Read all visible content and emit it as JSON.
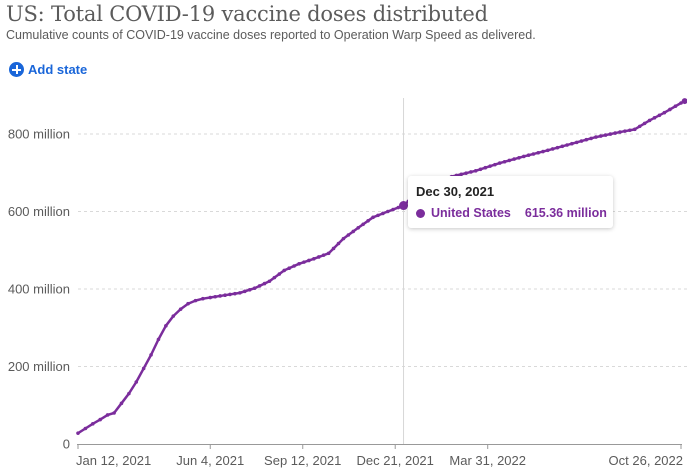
{
  "header": {
    "title": "US: Total COVID-19 vaccine doses distributed",
    "subtitle": "Cumulative counts of COVID-19 vaccine doses reported to Operation Warp Speed as delivered."
  },
  "controls": {
    "add_state_label": "Add state",
    "add_state_icon": "plus-circle-icon"
  },
  "colors": {
    "series": "#7b2d9c",
    "link": "#1a66d9",
    "text": "#5b5b5b",
    "grid": "#d9d9d9"
  },
  "tooltip": {
    "date": "Dec 30, 2021",
    "entity": "United States",
    "value": "615.36 million"
  },
  "chart_data": {
    "type": "line",
    "title": "US: Total COVID-19 vaccine doses distributed",
    "subtitle": "Cumulative counts of COVID-19 vaccine doses reported to Operation Warp Speed as delivered.",
    "xlabel": "",
    "ylabel": "",
    "x_type": "date",
    "xlim": [
      "2021-01-12",
      "2022-10-26"
    ],
    "ylim": [
      0,
      900000000
    ],
    "grid": "horizontal dashed",
    "legend": "none",
    "yticks": [
      {
        "value": 0,
        "label": "0"
      },
      {
        "value": 200000000,
        "label": "200 million"
      },
      {
        "value": 400000000,
        "label": "400 million"
      },
      {
        "value": 600000000,
        "label": "600 million"
      },
      {
        "value": 800000000,
        "label": "800 million"
      }
    ],
    "xticks": [
      {
        "value": "2021-01-12",
        "label": "Jan 12, 2021"
      },
      {
        "value": "2021-06-04",
        "label": "Jun 4, 2021"
      },
      {
        "value": "2021-09-12",
        "label": "Sep 12, 2021"
      },
      {
        "value": "2021-12-21",
        "label": "Dec 21, 2021"
      },
      {
        "value": "2022-03-31",
        "label": "Mar 31, 2022"
      },
      {
        "value": "2022-10-26",
        "label": "Oct 26, 2022"
      }
    ],
    "series": [
      {
        "name": "United States",
        "x": [
          "2021-01-12",
          "2021-01-20",
          "2021-01-28",
          "2021-02-05",
          "2021-02-13",
          "2021-02-20",
          "2021-02-28",
          "2021-03-08",
          "2021-03-16",
          "2021-03-24",
          "2021-04-01",
          "2021-04-09",
          "2021-04-17",
          "2021-04-25",
          "2021-05-03",
          "2021-05-11",
          "2021-05-19",
          "2021-05-27",
          "2021-06-04",
          "2021-06-20",
          "2021-07-06",
          "2021-07-22",
          "2021-08-07",
          "2021-08-23",
          "2021-09-08",
          "2021-09-24",
          "2021-10-10",
          "2021-10-26",
          "2021-11-11",
          "2021-11-27",
          "2021-12-13",
          "2021-12-30",
          "2022-01-25",
          "2022-02-20",
          "2022-03-18",
          "2022-04-13",
          "2022-05-09",
          "2022-06-04",
          "2022-06-30",
          "2022-07-26",
          "2022-08-21",
          "2022-09-06",
          "2022-09-22",
          "2022-10-08",
          "2022-10-26",
          "2022-10-30"
        ],
        "values": [
          28000000,
          40000000,
          52000000,
          63000000,
          75000000,
          80000000,
          105000000,
          130000000,
          160000000,
          195000000,
          230000000,
          270000000,
          305000000,
          330000000,
          348000000,
          362000000,
          370000000,
          375000000,
          378000000,
          384000000,
          390000000,
          402000000,
          420000000,
          448000000,
          465000000,
          478000000,
          492000000,
          530000000,
          558000000,
          585000000,
          600000000,
          615360000,
          670000000,
          690000000,
          705000000,
          725000000,
          742000000,
          758000000,
          775000000,
          792000000,
          805000000,
          812000000,
          835000000,
          855000000,
          880000000,
          885000000
        ]
      }
    ],
    "annotations": [
      {
        "type": "crosshair",
        "x": "2021-12-30"
      },
      {
        "type": "tooltip",
        "date": "Dec 30, 2021",
        "series": "United States",
        "value": "615.36 million"
      }
    ]
  }
}
